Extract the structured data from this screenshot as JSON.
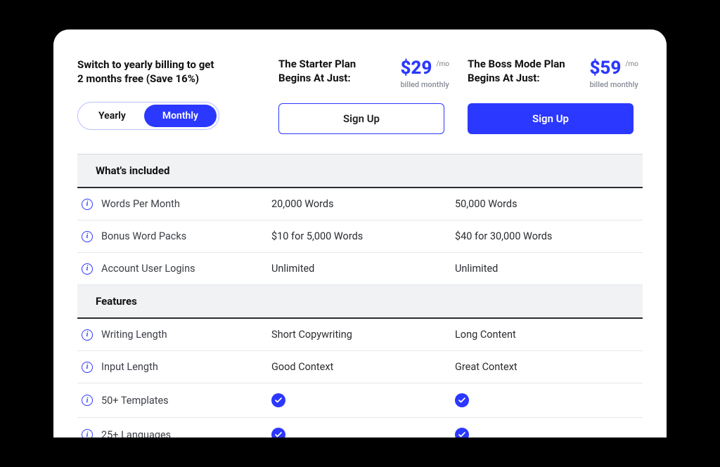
{
  "colors": {
    "page_bg": "#000000",
    "card_bg": "#ffffff",
    "accent": "#2b38ff",
    "text_primary": "#111111",
    "text_body": "#2a2c30",
    "text_muted": "#878d96",
    "section_bg": "#f1f2f4",
    "row_border": "#e5e7eb",
    "section_underline": "#2a2c30"
  },
  "promo": {
    "line1": "Switch to yearly billing to get",
    "line2": "2 months free (Save 16%)"
  },
  "toggle": {
    "options": [
      "Yearly",
      "Monthly"
    ],
    "active_index": 1
  },
  "plans": [
    {
      "title_line1": "The Starter Plan",
      "title_line2": "Begins At Just:",
      "price": "$29",
      "per": "/mo",
      "billed": "billed monthly",
      "cta": "Sign Up",
      "cta_style": "outline"
    },
    {
      "title_line1": "The Boss Mode Plan",
      "title_line2": "Begins At Just:",
      "price": "$59",
      "per": "/mo",
      "billed": "billed monthly",
      "cta": "Sign Up",
      "cta_style": "fill"
    }
  ],
  "sections": [
    {
      "title": "What's included",
      "rows": [
        {
          "label": "Words Per Month",
          "plan1": "20,000 Words",
          "plan2": "50,000 Words"
        },
        {
          "label": "Bonus Word Packs",
          "plan1": "$10 for 5,000 Words",
          "plan2": "$40 for 30,000 Words"
        },
        {
          "label": "Account User Logins",
          "plan1": "Unlimited",
          "plan2": "Unlimited"
        }
      ]
    },
    {
      "title": "Features",
      "rows": [
        {
          "label": "Writing Length",
          "plan1": "Short Copywriting",
          "plan2": "Long Content"
        },
        {
          "label": "Input Length",
          "plan1": "Good Context",
          "plan2": "Great Context"
        },
        {
          "label": "50+ Templates",
          "plan1": "__check__",
          "plan2": "__check__"
        },
        {
          "label": "25+ Languages",
          "plan1": "__check__",
          "plan2": "__check__"
        }
      ]
    }
  ]
}
